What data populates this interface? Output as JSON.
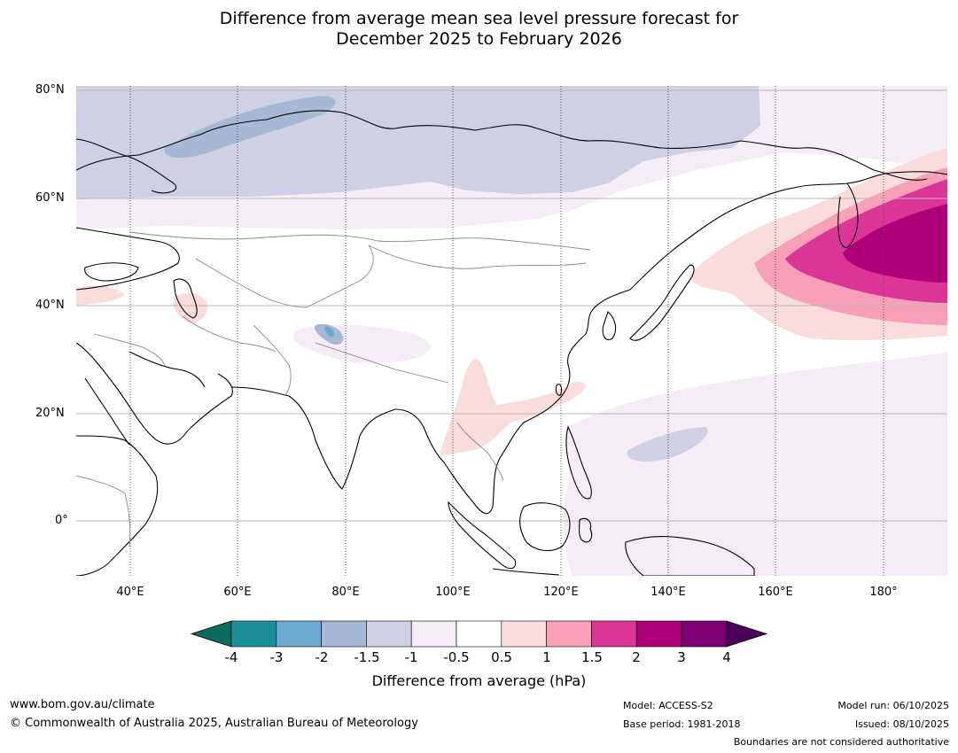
{
  "title": {
    "line1": "Difference from average mean sea level pressure forecast for",
    "line2": "December 2025 to February 2026"
  },
  "axes": {
    "lat_labels": [
      "80°N",
      "60°N",
      "40°N",
      "20°N",
      "0°"
    ],
    "lon_labels": [
      "40°E",
      "60°E",
      "80°E",
      "100°E",
      "120°E",
      "140°E",
      "160°E",
      "180°"
    ]
  },
  "colorbar": {
    "title": "Difference from average (hPa)",
    "ticks": [
      "-4",
      "-3",
      "-2",
      "-1.5",
      "-1",
      "-0.5",
      "0.5",
      "1",
      "1.5",
      "2",
      "3",
      "4"
    ],
    "colors": {
      "below": "#0b6b5e",
      "bins": [
        "#1a8f97",
        "#6aa9d0",
        "#a7b8d6",
        "#cfd0e3",
        "#f4edf5",
        "#ffffff",
        "#fbdcdc",
        "#f7a0b8",
        "#dc3598",
        "#ad0079",
        "#7d0075"
      ],
      "above": "#4a0059"
    }
  },
  "footer": {
    "website": "www.bom.gov.au/climate",
    "copyright": "© Commonwealth of Australia 2025, Australian Bureau of Meteorology",
    "model": "Model: ACCESS-S2",
    "base_period": "Base period: 1981-2018",
    "model_run": "Model run: 06/10/2025",
    "issued": "Issued: 08/10/2025",
    "disclaimer": "Boundaries are not considered authoritative"
  }
}
